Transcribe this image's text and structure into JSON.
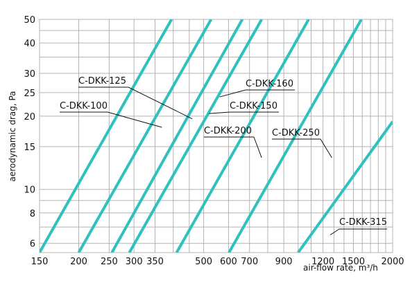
{
  "chart_data": {
    "type": "line",
    "xscale": "log",
    "yscale": "log",
    "xlim": [
      150,
      2000
    ],
    "ylim": [
      5.5,
      50
    ],
    "grid": true,
    "xlabel": "air-flow rate, m³/h",
    "ylabel": "aerodynamic drag, Pa",
    "xticks": [
      150,
      200,
      250,
      300,
      350,
      500,
      600,
      700,
      900,
      1200,
      1500,
      2000
    ],
    "xgrid": [
      150,
      200,
      250,
      300,
      350,
      400,
      450,
      500,
      600,
      700,
      800,
      900,
      1000,
      1100,
      1200,
      1300,
      1400,
      1500,
      1600,
      1700,
      1800,
      1900,
      2000
    ],
    "yticks": [
      6,
      8,
      10,
      15,
      20,
      25,
      30,
      40,
      50
    ],
    "ygrid": [
      6,
      7,
      8,
      9,
      10,
      15,
      20,
      25,
      30,
      35,
      40,
      45,
      50
    ],
    "series": [
      {
        "name": "C-DKK-100",
        "x": [
          150,
          395
        ],
        "y": [
          5.5,
          50
        ]
      },
      {
        "name": "C-DKK-125",
        "x": [
          200,
          528
        ],
        "y": [
          5.5,
          50
        ]
      },
      {
        "name": "C-DKK-150",
        "x": [
          255,
          664
        ],
        "y": [
          5.5,
          50
        ]
      },
      {
        "name": "C-DKK-160",
        "x": [
          290,
          765
        ],
        "y": [
          5.5,
          50
        ]
      },
      {
        "name": "C-DKK-200",
        "x": [
          410,
          1080
        ],
        "y": [
          5.5,
          50
        ]
      },
      {
        "name": "C-DKK-250",
        "x": [
          602,
          1590
        ],
        "y": [
          5.5,
          50
        ]
      },
      {
        "name": "C-DKK-315",
        "x": [
          1000,
          2000
        ],
        "y": [
          5.5,
          19
        ]
      }
    ],
    "annotations": [
      {
        "text": "C-DKK-125",
        "target": [
          460,
          19.5
        ]
      },
      {
        "text": "C-DKK-100",
        "target": [
          368,
          18
        ]
      },
      {
        "text": "C-DKK-160",
        "target": [
          562,
          24
        ]
      },
      {
        "text": "C-DKK-150",
        "target": [
          520,
          20.5
        ]
      },
      {
        "text": "C-DKK-200",
        "target": [
          765,
          13.5
        ]
      },
      {
        "text": "C-DKK-250",
        "target": [
          1280,
          13.5
        ]
      },
      {
        "text": "C-DKK-315",
        "target": [
          1265,
          6.5
        ]
      }
    ]
  }
}
